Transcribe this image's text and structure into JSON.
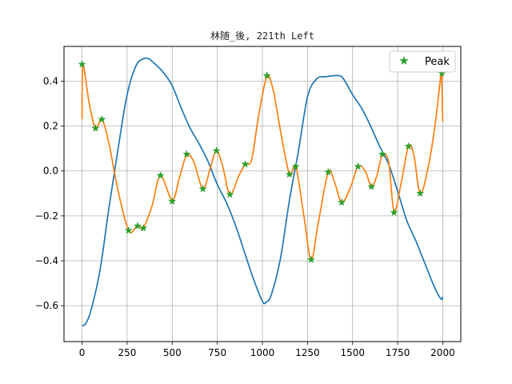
{
  "chart_data": {
    "type": "line",
    "title": "林随_後, 221th Left",
    "xlabel": "",
    "ylabel": "",
    "xlim": [
      -100,
      2100
    ],
    "ylim": [
      -0.76,
      0.555
    ],
    "grid": true,
    "x_ticks": [
      0,
      250,
      500,
      750,
      1000,
      1250,
      1500,
      1750,
      2000
    ],
    "y_ticks": [
      -0.6,
      -0.4,
      -0.2,
      0.0,
      0.2,
      0.4
    ],
    "x_tick_labels": [
      "0",
      "250",
      "500",
      "750",
      "1000",
      "1250",
      "1500",
      "1750",
      "2000"
    ],
    "y_tick_labels": [
      "−0.6",
      "−0.4",
      "−0.2",
      "0.0",
      "0.2",
      "0.4"
    ],
    "legend": {
      "placement": "upper-right",
      "entries": [
        "Peak"
      ]
    },
    "series": [
      {
        "color": "#1f77b4",
        "x": [
          0,
          20,
          50,
          100,
          150,
          200,
          250,
          300,
          340,
          370,
          400,
          450,
          500,
          550,
          600,
          650,
          700,
          750,
          800,
          850,
          900,
          950,
          1000,
          1020,
          1050,
          1100,
          1150,
          1200,
          1250,
          1300,
          1350,
          1420,
          1450,
          1500,
          1550,
          1600,
          1650,
          1700,
          1750,
          1800,
          1850,
          1900,
          1950,
          1990,
          2000
        ],
        "y": [
          -0.69,
          -0.68,
          -0.62,
          -0.44,
          -0.16,
          0.1,
          0.34,
          0.47,
          0.5,
          0.5,
          0.48,
          0.44,
          0.38,
          0.28,
          0.19,
          0.12,
          0.04,
          -0.06,
          -0.14,
          -0.24,
          -0.36,
          -0.48,
          -0.58,
          -0.585,
          -0.55,
          -0.39,
          -0.13,
          0.09,
          0.33,
          0.41,
          0.42,
          0.425,
          0.41,
          0.34,
          0.28,
          0.2,
          0.11,
          0.03,
          -0.09,
          -0.22,
          -0.31,
          -0.41,
          -0.51,
          -0.57,
          -0.56
        ]
      },
      {
        "color": "#ff7f0e",
        "x": [
          0,
          5,
          40,
          75,
          110,
          150,
          200,
          258,
          300,
          320,
          340,
          390,
          435,
          500,
          540,
          580,
          620,
          670,
          710,
          745,
          780,
          820,
          870,
          905,
          940,
          980,
          1025,
          1060,
          1100,
          1150,
          1185,
          1230,
          1270,
          1310,
          1365,
          1400,
          1440,
          1490,
          1530,
          1570,
          1605,
          1635,
          1665,
          1700,
          1730,
          1770,
          1810,
          1840,
          1875,
          1920,
          1960,
          1990,
          1995,
          2000
        ],
        "y": [
          0.23,
          0.47,
          0.3,
          0.19,
          0.23,
          0.12,
          -0.09,
          -0.265,
          -0.25,
          -0.245,
          -0.255,
          -0.15,
          -0.02,
          -0.13,
          -0.03,
          0.07,
          0.04,
          -0.08,
          0.01,
          0.09,
          0.02,
          -0.105,
          -0.02,
          0.03,
          0.05,
          0.25,
          0.42,
          0.36,
          0.18,
          -0.015,
          0.02,
          -0.2,
          -0.395,
          -0.23,
          -0.005,
          -0.05,
          -0.14,
          -0.07,
          0.02,
          0.0,
          -0.07,
          -0.02,
          0.07,
          0.04,
          -0.18,
          -0.05,
          0.11,
          0.07,
          -0.1,
          0.02,
          0.22,
          0.43,
          0.38,
          0.22
        ]
      }
    ],
    "peaks": {
      "name": "Peak",
      "color": "#2ca02c",
      "x": [
        0,
        75,
        110,
        258,
        308,
        340,
        435,
        500,
        580,
        670,
        745,
        820,
        905,
        1025,
        1150,
        1185,
        1270,
        1365,
        1440,
        1530,
        1605,
        1665,
        1730,
        1810,
        1875,
        1995
      ],
      "y": [
        0.475,
        0.19,
        0.23,
        -0.265,
        -0.245,
        -0.255,
        -0.02,
        -0.135,
        0.075,
        -0.08,
        0.09,
        -0.105,
        0.03,
        0.425,
        -0.015,
        0.02,
        -0.395,
        -0.005,
        -0.14,
        0.02,
        -0.07,
        0.075,
        -0.185,
        0.11,
        -0.1,
        0.435
      ]
    }
  }
}
